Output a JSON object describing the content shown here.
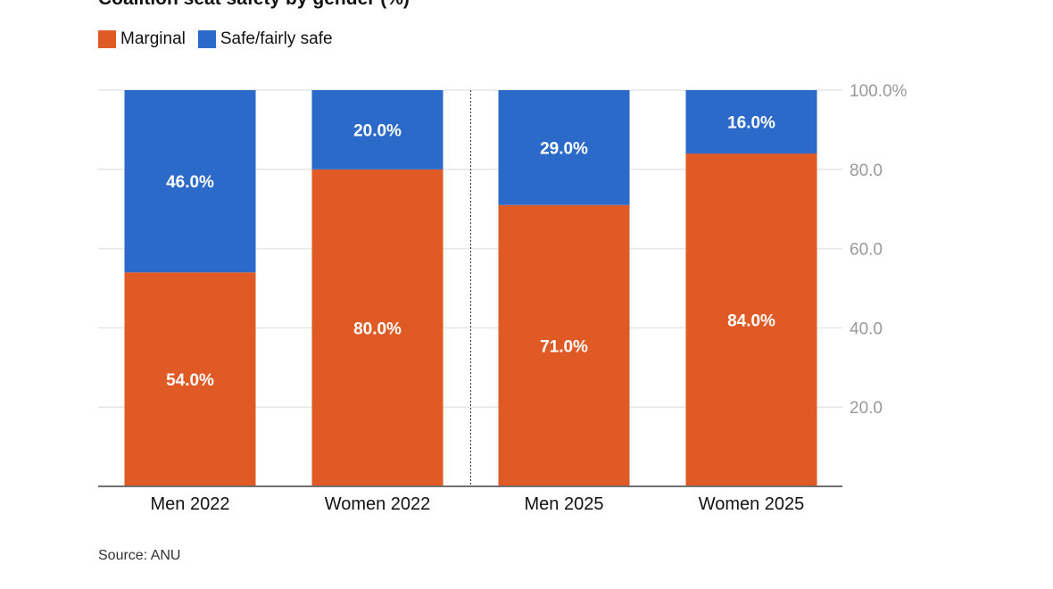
{
  "chart_data": {
    "type": "bar",
    "stacked": true,
    "title": "Coalition seat safety by gender (%)",
    "categories": [
      "Men 2022",
      "Women 2022",
      "Men 2025",
      "Women 2025"
    ],
    "series": [
      {
        "name": "Marginal",
        "color": "#e05a26",
        "values": [
          54.0,
          80.0,
          71.0,
          84.0
        ],
        "labels": [
          "54.0%",
          "80.0%",
          "71.0%",
          "84.0%"
        ]
      },
      {
        "name": "Safe/fairly safe",
        "color": "#2b6ac9",
        "values": [
          46.0,
          20.0,
          29.0,
          16.0
        ],
        "labels": [
          "46.0%",
          "20.0%",
          "29.0%",
          "16.0%"
        ]
      }
    ],
    "y_ticks": [
      "20.0",
      "40.0",
      "60.0",
      "80.0",
      "100.0%"
    ],
    "y_tick_values": [
      20,
      40,
      60,
      80,
      100
    ],
    "ylim": [
      0,
      100
    ],
    "grid": true,
    "y_axis_position": "right",
    "legend_position": "top-left",
    "divider_between": [
      "Women 2022",
      "Men 2025"
    ]
  },
  "source": "Source: ANU"
}
